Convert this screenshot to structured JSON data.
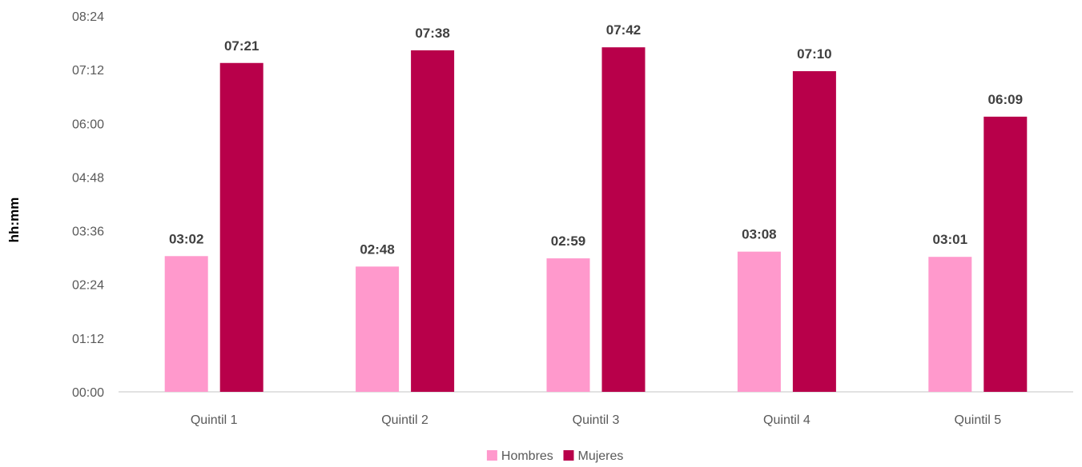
{
  "chart_data": {
    "type": "bar",
    "title": "",
    "xlabel": "",
    "ylabel": "hh:mm",
    "categories": [
      "Quintil 1",
      "Quintil 2",
      "Quintil 3",
      "Quintil 4",
      "Quintil 5"
    ],
    "series": [
      {
        "name": "Hombres",
        "color": "#FF99CC",
        "values": [
          "03:02",
          "02:48",
          "02:59",
          "03:08",
          "03:01"
        ]
      },
      {
        "name": "Mujeres",
        "color": "#B8004A",
        "values": [
          "07:21",
          "07:38",
          "07:42",
          "07:10",
          "06:09"
        ]
      }
    ],
    "yticks": [
      "00:00",
      "01:12",
      "02:24",
      "03:36",
      "04:48",
      "06:00",
      "07:12",
      "08:24"
    ],
    "ylim": [
      "00:00",
      "08:24"
    ],
    "grid": false,
    "legend_position": "bottom-center"
  }
}
